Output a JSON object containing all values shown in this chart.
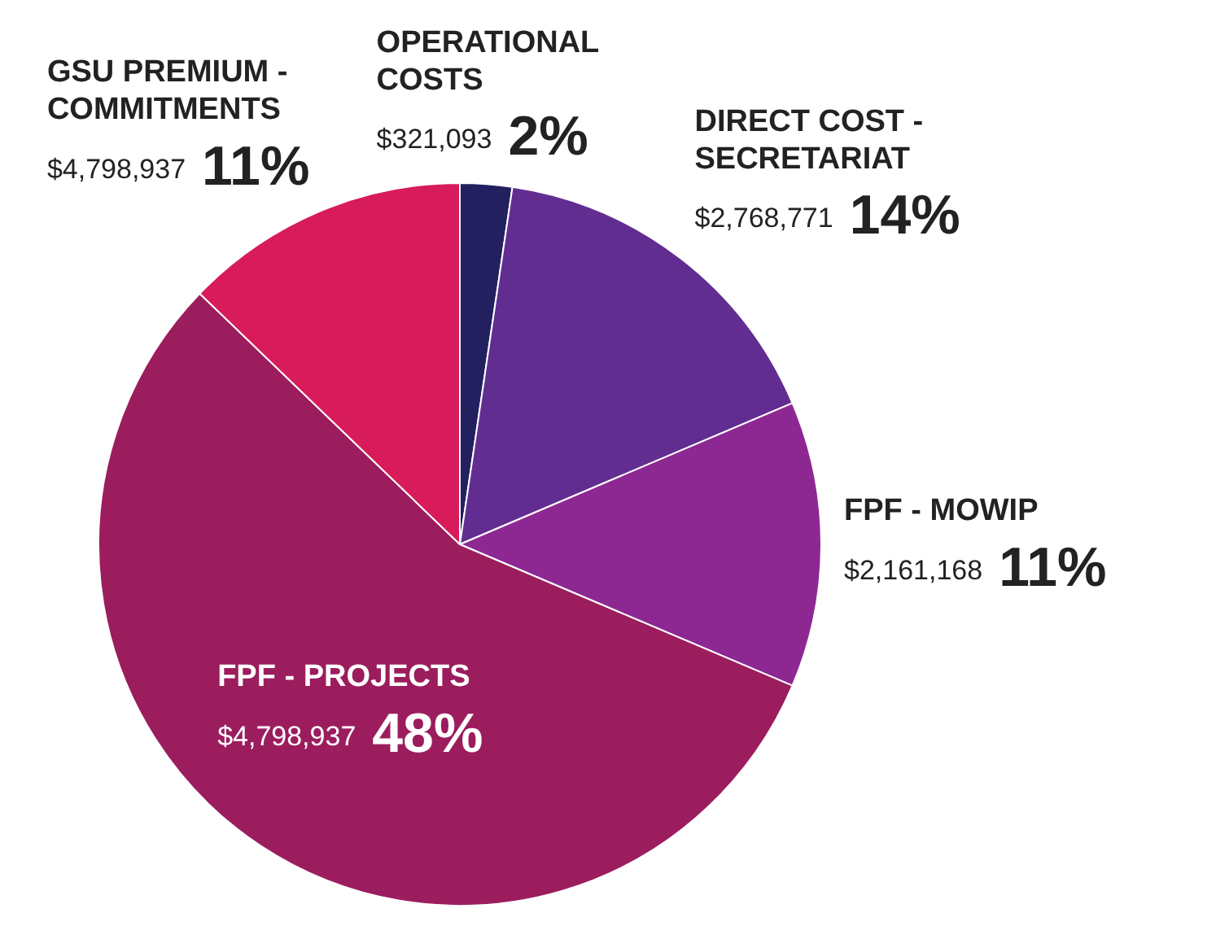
{
  "chart_data": {
    "type": "pie",
    "categories": [
      "OPERATIONAL COSTS",
      "DIRECT COST - SECRETARIAT",
      "FPF - MOWIP",
      "FPF - PROJECTS",
      "GSU PREMIUM - COMMITMENTS"
    ],
    "values": [
      2,
      14,
      11,
      48,
      11
    ],
    "colors": [
      "#232060",
      "#622d91",
      "#8d2893",
      "#9b1d5e",
      "#d81b5b"
    ],
    "value_labels": [
      "$321,093 2%",
      "$2,768,771 14%",
      "$2,161,168 11%",
      "$4,798,937 48%",
      "$4,798,937 11%"
    ],
    "legend": false
  }
}
